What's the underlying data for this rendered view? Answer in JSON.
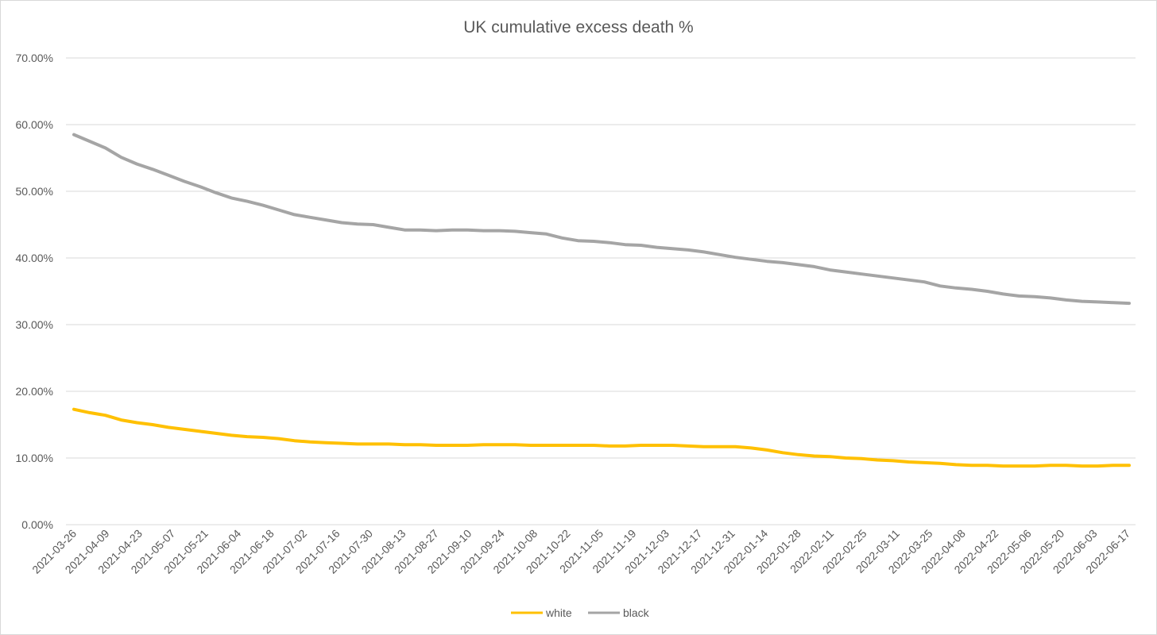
{
  "chart_data": {
    "type": "line",
    "title": "UK cumulative excess death %",
    "xlabel": "",
    "ylabel": "",
    "ylim": [
      0,
      0.7
    ],
    "y_ticks": [
      0,
      0.1,
      0.2,
      0.3,
      0.4,
      0.5,
      0.6,
      0.7
    ],
    "y_tick_labels": [
      "0.00%",
      "10.00%",
      "20.00%",
      "30.00%",
      "40.00%",
      "50.00%",
      "60.00%",
      "70.00%"
    ],
    "x_tick_labels": [
      "2021-03-26",
      "2021-04-09",
      "2021-04-23",
      "2021-05-07",
      "2021-05-21",
      "2021-06-04",
      "2021-06-18",
      "2021-07-02",
      "2021-07-16",
      "2021-07-30",
      "2021-08-13",
      "2021-08-27",
      "2021-09-10",
      "2021-09-24",
      "2021-10-08",
      "2021-10-22",
      "2021-11-05",
      "2021-11-19",
      "2021-12-03",
      "2021-12-17",
      "2021-12-31",
      "2022-01-14",
      "2022-01-28",
      "2022-02-11",
      "2022-02-25",
      "2022-03-11",
      "2022-03-25",
      "2022-04-08",
      "2022-04-22",
      "2022-05-06",
      "2022-05-20",
      "2022-06-03",
      "2022-06-17"
    ],
    "grid": true,
    "legend_position": "bottom",
    "series": [
      {
        "name": "white",
        "color": "#ffc000",
        "values": [
          0.173,
          0.168,
          0.164,
          0.157,
          0.153,
          0.15,
          0.146,
          0.143,
          0.14,
          0.137,
          0.134,
          0.132,
          0.131,
          0.129,
          0.126,
          0.124,
          0.123,
          0.122,
          0.121,
          0.121,
          0.121,
          0.12,
          0.12,
          0.119,
          0.119,
          0.119,
          0.12,
          0.12,
          0.12,
          0.119,
          0.119,
          0.119,
          0.119,
          0.119,
          0.118,
          0.118,
          0.119,
          0.119,
          0.119,
          0.118,
          0.117,
          0.117,
          0.117,
          0.115,
          0.112,
          0.108,
          0.105,
          0.103,
          0.102,
          0.1,
          0.099,
          0.097,
          0.096,
          0.094,
          0.093,
          0.092,
          0.09,
          0.089,
          0.089,
          0.088,
          0.088,
          0.088,
          0.089,
          0.089,
          0.088,
          0.088,
          0.089,
          0.089
        ]
      },
      {
        "name": "black",
        "color": "#a5a5a5",
        "values": [
          0.585,
          0.575,
          0.565,
          0.551,
          0.541,
          0.533,
          0.524,
          0.515,
          0.507,
          0.498,
          0.49,
          0.485,
          0.479,
          0.472,
          0.465,
          0.461,
          0.457,
          0.453,
          0.451,
          0.45,
          0.446,
          0.442,
          0.442,
          0.441,
          0.442,
          0.442,
          0.441,
          0.441,
          0.44,
          0.438,
          0.436,
          0.43,
          0.426,
          0.425,
          0.423,
          0.42,
          0.419,
          0.416,
          0.414,
          0.412,
          0.409,
          0.405,
          0.401,
          0.398,
          0.395,
          0.393,
          0.39,
          0.387,
          0.382,
          0.379,
          0.376,
          0.373,
          0.37,
          0.367,
          0.364,
          0.358,
          0.355,
          0.353,
          0.35,
          0.346,
          0.343,
          0.342,
          0.34,
          0.337,
          0.335,
          0.334,
          0.333,
          0.332
        ]
      }
    ]
  }
}
